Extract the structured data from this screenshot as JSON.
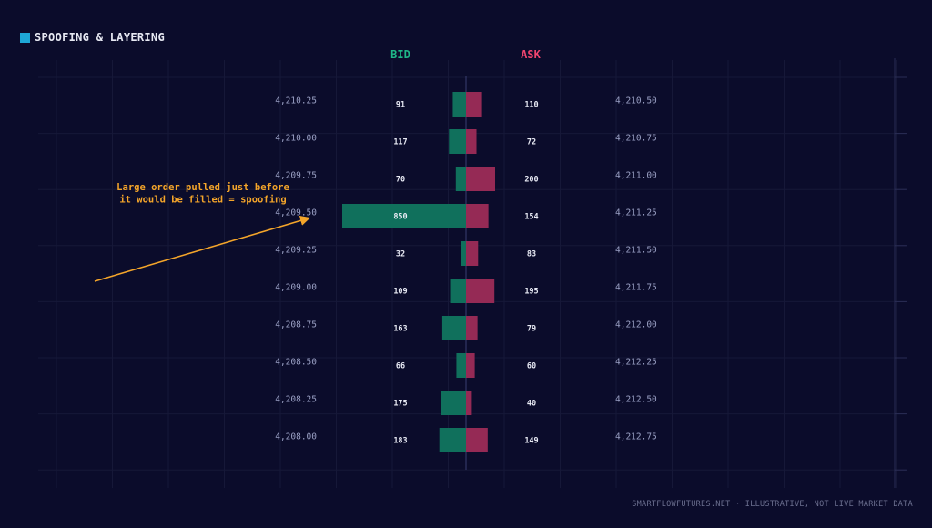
{
  "header": {
    "title": "SPOOFING & LAYERING",
    "accent_color": "#1ea7d6"
  },
  "footer": {
    "text": "SMARTFLOWFUTURES.NET · ILLUSTRATIVE, NOT LIVE MARKET DATA"
  },
  "colors": {
    "background": "#0b0c2b",
    "bid": "#10705c",
    "ask": "#952a55",
    "bid_label": "#1fb788",
    "ask_label": "#f0446f",
    "annotation": "#f4a52a"
  },
  "chart_data": {
    "type": "bar",
    "subtype": "order-book depth ladder",
    "bid_header": "BID",
    "ask_header": "ASK",
    "rows": [
      {
        "bid_price": "4,210.25",
        "bid_size": 91,
        "ask_size": 110,
        "ask_price": "4,210.50"
      },
      {
        "bid_price": "4,210.00",
        "bid_size": 117,
        "ask_size": 72,
        "ask_price": "4,210.75"
      },
      {
        "bid_price": "4,209.75",
        "bid_size": 70,
        "ask_size": 200,
        "ask_price": "4,211.00"
      },
      {
        "bid_price": "4,209.50",
        "bid_size": 850,
        "ask_size": 154,
        "ask_price": "4,211.25"
      },
      {
        "bid_price": "4,209.25",
        "bid_size": 32,
        "ask_size": 83,
        "ask_price": "4,211.50"
      },
      {
        "bid_price": "4,209.00",
        "bid_size": 109,
        "ask_size": 195,
        "ask_price": "4,211.75"
      },
      {
        "bid_price": "4,208.75",
        "bid_size": 163,
        "ask_size": 79,
        "ask_price": "4,212.00"
      },
      {
        "bid_price": "4,208.50",
        "bid_size": 66,
        "ask_size": 60,
        "ask_price": "4,212.25"
      },
      {
        "bid_price": "4,208.25",
        "bid_size": 175,
        "ask_size": 40,
        "ask_price": "4,212.50"
      },
      {
        "bid_price": "4,208.00",
        "bid_size": 183,
        "ask_size": 149,
        "ask_price": "4,212.75"
      }
    ],
    "annotation": {
      "lines": [
        "Large order pulled just before",
        "it would be filled = spoofing"
      ],
      "target_price": "4,209.50"
    },
    "grid": true
  }
}
